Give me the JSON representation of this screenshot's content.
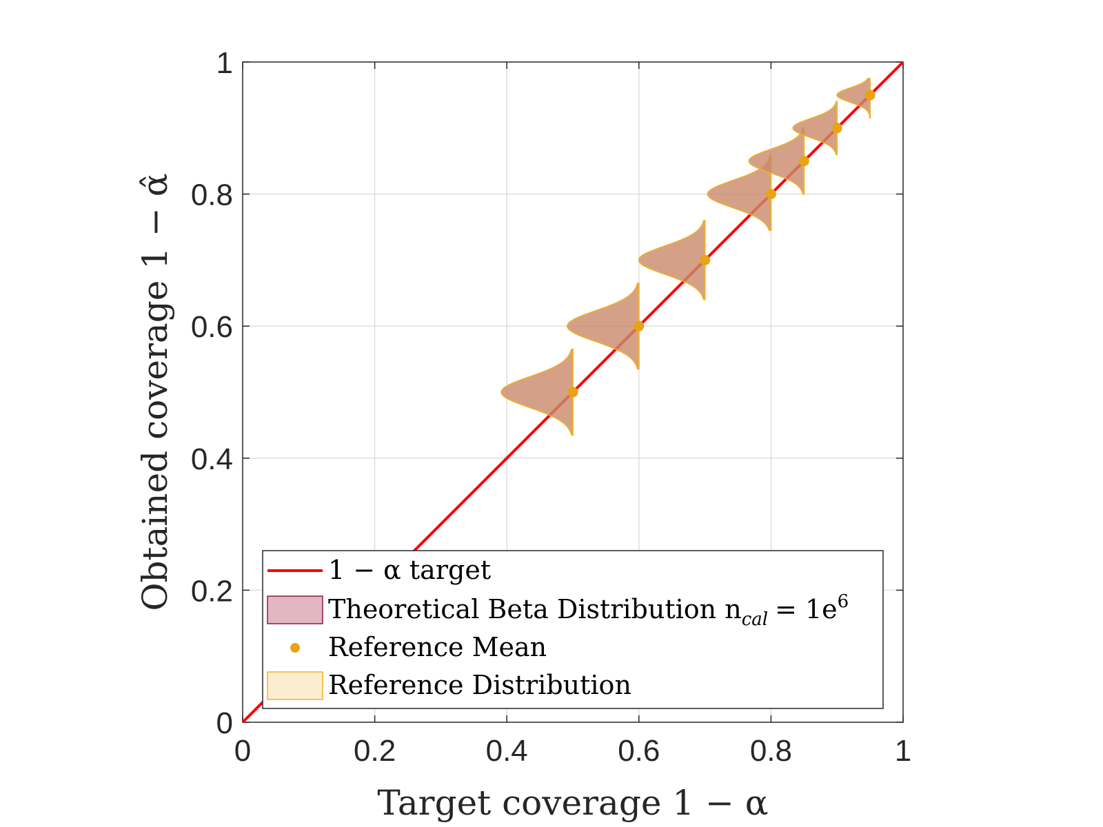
{
  "chart_data": {
    "type": "line",
    "xlabel": "Target coverage 1 − α",
    "ylabel": "Obtained coverage 1 − α̂",
    "xlim": [
      0,
      1
    ],
    "ylim": [
      0,
      1
    ],
    "x_ticks": [
      "0",
      "0.2",
      "0.4",
      "0.6",
      "0.8",
      "1"
    ],
    "y_ticks": [
      "0",
      "0.2",
      "0.4",
      "0.6",
      "0.8",
      "1"
    ],
    "grid": true,
    "legend_placement": "bottom-right",
    "target_line": {
      "x": [
        0,
        1
      ],
      "y": [
        0,
        1
      ],
      "color": "#ff0000"
    },
    "distributions": [
      {
        "x": 0.5,
        "mean": 0.5,
        "min": 0.435,
        "max": 0.565
      },
      {
        "x": 0.6,
        "mean": 0.6,
        "min": 0.535,
        "max": 0.665
      },
      {
        "x": 0.7,
        "mean": 0.7,
        "min": 0.64,
        "max": 0.76
      },
      {
        "x": 0.8,
        "mean": 0.8,
        "min": 0.745,
        "max": 0.86
      },
      {
        "x": 0.85,
        "mean": 0.85,
        "min": 0.8,
        "max": 0.9
      },
      {
        "x": 0.9,
        "mean": 0.9,
        "min": 0.86,
        "max": 0.94
      },
      {
        "x": 0.95,
        "mean": 0.95,
        "min": 0.915,
        "max": 0.975
      }
    ],
    "reference_mean": {
      "x": [
        0.5,
        0.6,
        0.7,
        0.8,
        0.85,
        0.9,
        0.95
      ],
      "y": [
        0.5,
        0.6,
        0.7,
        0.8,
        0.85,
        0.9,
        0.95
      ]
    },
    "legend": [
      {
        "label": "1 − α target",
        "kind": "line",
        "color": "#ff0000"
      },
      {
        "label": "Theoretical Beta Distribution n",
        "kind": "patch",
        "fill": "#e3b7c1",
        "stroke": "#8c1c3c"
      },
      {
        "label": "Reference Mean",
        "kind": "marker",
        "color": "#e8a317"
      },
      {
        "label": "Reference Distribution",
        "kind": "patch",
        "fill": "#fbedcf",
        "stroke": "#f0b429"
      }
    ],
    "legend_math": {
      "subscript": "cal",
      "equals": "= 1e",
      "superscript": "6"
    },
    "colors": {
      "target": "#ff0000",
      "beta_fill": "#c98a6a",
      "beta_stroke": "#8c1c3c",
      "ref_stroke": "#f0b429",
      "mean": "#e8a317"
    }
  }
}
